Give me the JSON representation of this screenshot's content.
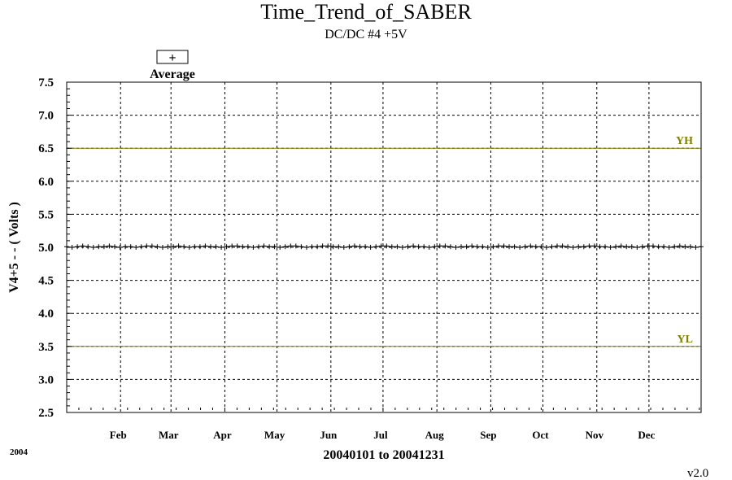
{
  "chart_data": {
    "type": "line",
    "title": "Time_Trend_of_SABER",
    "subtitle": "DC/DC #4 +5V",
    "ylabel": "V4+5  - - ( Volts )",
    "xlabel": "20040101 to 20041231",
    "year_label": "2004",
    "version_label": "v2.0",
    "ylim": [
      2.5,
      7.5
    ],
    "yticks": [
      "7.5",
      "7.0",
      "6.5",
      "6.0",
      "5.5",
      "5.0",
      "4.5",
      "4.0",
      "3.5",
      "3.0",
      "2.5"
    ],
    "xlim": [
      "2004-01-01",
      "2004-12-31"
    ],
    "month_ticks": [
      {
        "label": "Feb",
        "date": "2004-02-01"
      },
      {
        "label": "Mar",
        "date": "2004-03-01"
      },
      {
        "label": "Apr",
        "date": "2004-04-01"
      },
      {
        "label": "May",
        "date": "2004-05-01"
      },
      {
        "label": "Jun",
        "date": "2004-06-01"
      },
      {
        "label": "Jul",
        "date": "2004-07-01"
      },
      {
        "label": "Aug",
        "date": "2004-08-01"
      },
      {
        "label": "Sep",
        "date": "2004-09-01"
      },
      {
        "label": "Oct",
        "date": "2004-10-01"
      },
      {
        "label": "Nov",
        "date": "2004-11-01"
      },
      {
        "label": "Dec",
        "date": "2004-12-01"
      }
    ],
    "grid": true,
    "legend": {
      "symbol": "+",
      "label": "Average",
      "placement": "top-left"
    },
    "reference_lines": [
      {
        "label": "YH",
        "value": 6.5,
        "color": "#808000"
      },
      {
        "label": "YL",
        "value": 3.5,
        "color": "#808000"
      }
    ],
    "series": [
      {
        "name": "Average",
        "marker": "+",
        "x_start": "2004-01-01",
        "x_end": "2004-12-31",
        "values": [
          5.01,
          5.0,
          5.01,
          5.02,
          5.01,
          5.0,
          5.01,
          5.01,
          5.02,
          5.01,
          5.0,
          5.01,
          5.01,
          5.0,
          5.01,
          5.02,
          5.02,
          5.01,
          5.0,
          5.01,
          5.01,
          5.02,
          5.01,
          5.0,
          5.01,
          5.01,
          5.02,
          5.01,
          5.01,
          5.0,
          5.01,
          5.02,
          5.02,
          5.01,
          5.01,
          5.0,
          5.01,
          5.02,
          5.01,
          5.01,
          5.0,
          5.01,
          5.02,
          5.02,
          5.01,
          5.0,
          5.01,
          5.01,
          5.02,
          5.02,
          5.01,
          5.01,
          5.0,
          5.01,
          5.02,
          5.01,
          5.01,
          5.0,
          5.01,
          5.02,
          5.02,
          5.01,
          5.01,
          5.0,
          5.01,
          5.02,
          5.01,
          5.01,
          5.0,
          5.01,
          5.02,
          5.02,
          5.01,
          5.0,
          5.01,
          5.01,
          5.02,
          5.01,
          5.01,
          5.0,
          5.01,
          5.02,
          5.02,
          5.01,
          5.01,
          5.0,
          5.01,
          5.02,
          5.01,
          5.01,
          5.0,
          5.01,
          5.02,
          5.02,
          5.01,
          5.0,
          5.01,
          5.01,
          5.02,
          5.02,
          5.01,
          5.01,
          5.0,
          5.01,
          5.02,
          5.01,
          5.01,
          5.0,
          5.01,
          5.02,
          5.02,
          5.01,
          5.01,
          5.0,
          5.01,
          5.02,
          5.01,
          5.01,
          5.0,
          5.01
        ]
      }
    ]
  },
  "colors": {
    "axis": "#000000",
    "grid": "#000000",
    "reference": "#808000",
    "series": "#000000",
    "background": "#ffffff"
  }
}
